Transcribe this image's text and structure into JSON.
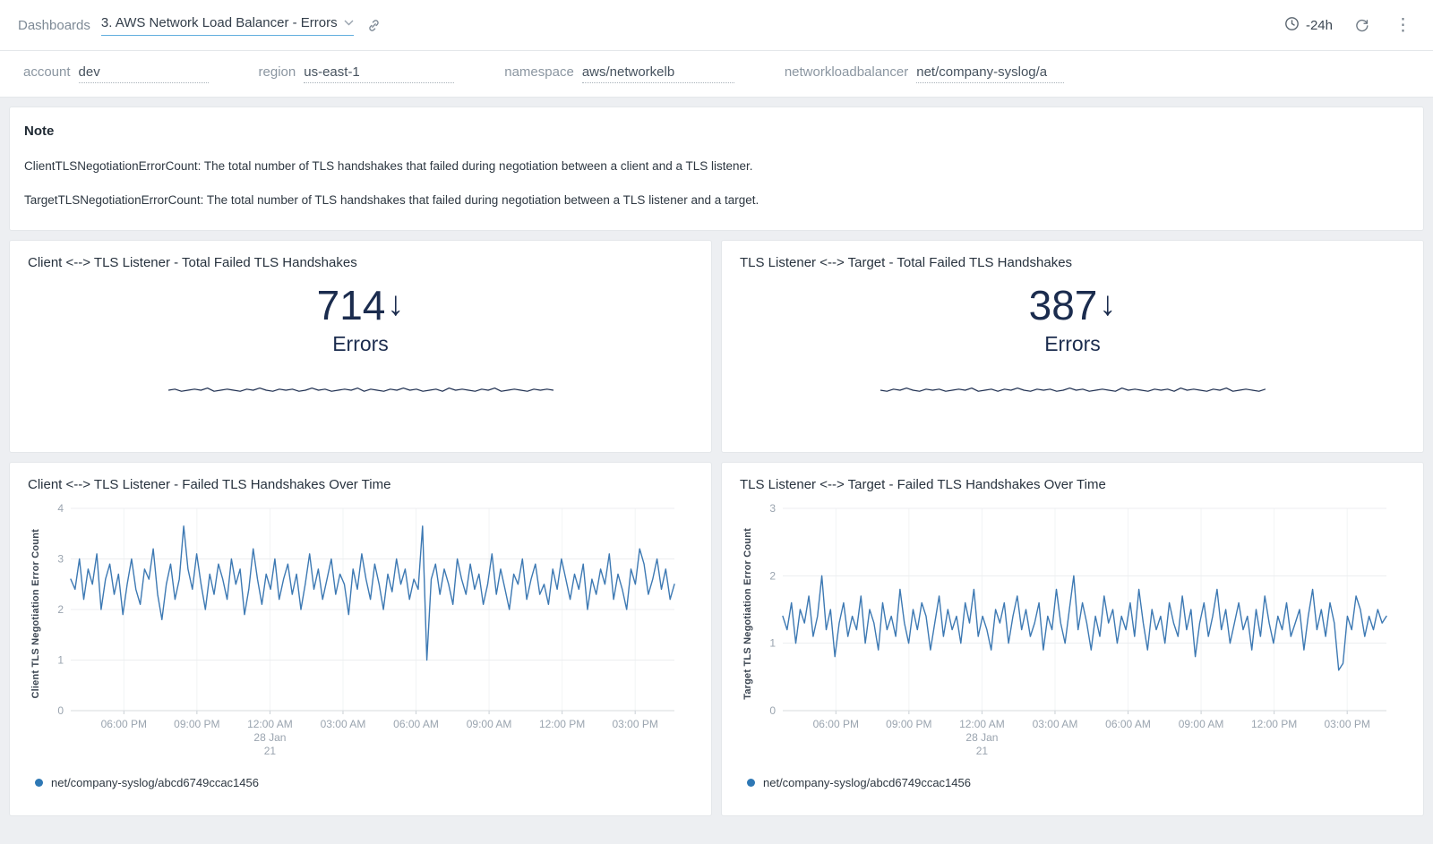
{
  "topbar": {
    "breadcrumb": "Dashboards",
    "title": "3. AWS Network Load Balancer - Errors",
    "time_range": "-24h"
  },
  "filters": [
    {
      "label": "account",
      "value": "dev"
    },
    {
      "label": "region",
      "value": "us-east-1"
    },
    {
      "label": "namespace",
      "value": "aws/networkelb"
    },
    {
      "label": "networkloadbalancer",
      "value": "net/company-syslog/a"
    }
  ],
  "note": {
    "title": "Note",
    "lines": [
      "ClientTLSNegotiationErrorCount: The total number of TLS handshakes that failed during negotiation between a client and a TLS listener.",
      "TargetTLSNegotiationErrorCount: The total number of TLS handshakes that failed during negotiation between a TLS listener and a target."
    ]
  },
  "colors": {
    "line_blue": "#3d79b3",
    "legend_dot": "#2e78b5",
    "number_navy": "#1b2c4e",
    "accent_underline": "#61aede"
  },
  "stats": [
    {
      "title": "Client <--> TLS Listener - Total Failed TLS Handshakes",
      "value": "714",
      "arrow": "↓",
      "unit": "Errors",
      "spark": [
        5,
        6,
        4,
        5,
        6,
        5,
        7,
        4,
        5,
        6,
        5,
        4,
        6,
        5,
        7,
        5,
        4,
        6,
        5,
        6,
        4,
        5,
        7,
        5,
        6,
        4,
        5,
        6,
        5,
        7,
        4,
        6,
        5,
        4,
        6,
        5,
        7,
        5,
        6,
        4,
        5,
        6,
        4,
        7,
        5,
        6,
        5,
        4,
        6,
        5,
        7,
        4,
        5,
        6,
        5,
        4,
        6,
        5,
        6,
        5
      ]
    },
    {
      "title": "TLS Listener <--> Target - Total Failed TLS Handshakes",
      "value": "387",
      "arrow": "↓",
      "unit": "Errors",
      "spark": [
        5,
        4,
        6,
        5,
        7,
        5,
        4,
        6,
        5,
        6,
        4,
        5,
        6,
        5,
        7,
        4,
        5,
        6,
        4,
        6,
        5,
        7,
        5,
        4,
        6,
        5,
        6,
        4,
        5,
        7,
        5,
        6,
        4,
        5,
        6,
        5,
        4,
        7,
        5,
        6,
        5,
        4,
        6,
        5,
        6,
        4,
        7,
        5,
        6,
        5,
        4,
        6,
        5,
        7,
        4,
        5,
        6,
        5,
        4,
        6
      ]
    }
  ],
  "chart_data": [
    {
      "type": "line",
      "title": "Client <--> TLS Listener - Failed TLS Handshakes Over Time",
      "ylabel": "Client TLS Negotiation Error Count",
      "ylim": [
        0,
        4
      ],
      "yticks": [
        0,
        1,
        2,
        3,
        4
      ],
      "xticks": [
        "06:00 PM",
        "09:00 PM",
        "12:00 AM",
        "03:00 AM",
        "06:00 AM",
        "09:00 AM",
        "12:00 PM",
        "03:00 PM"
      ],
      "date_tick_index": 2,
      "date_lines": [
        "28 Jan",
        "21"
      ],
      "grid": true,
      "legend_position": "bottom-left",
      "color": "#3d79b3",
      "series": [
        {
          "name": "net/company-syslog/abcd6749ccac1456",
          "values": [
            2.6,
            2.4,
            3.0,
            2.2,
            2.8,
            2.5,
            3.1,
            2.0,
            2.6,
            2.9,
            2.3,
            2.7,
            1.9,
            2.5,
            3.0,
            2.4,
            2.1,
            2.8,
            2.6,
            3.2,
            2.3,
            1.8,
            2.5,
            2.9,
            2.2,
            2.6,
            3.65,
            2.8,
            2.4,
            3.1,
            2.5,
            2.0,
            2.7,
            2.3,
            2.9,
            2.6,
            2.2,
            3.0,
            2.5,
            2.8,
            1.9,
            2.4,
            3.2,
            2.6,
            2.1,
            2.7,
            2.4,
            3.0,
            2.2,
            2.6,
            2.9,
            2.3,
            2.7,
            2.0,
            2.5,
            3.1,
            2.4,
            2.8,
            2.2,
            2.6,
            3.0,
            2.3,
            2.7,
            2.5,
            1.9,
            2.8,
            2.4,
            3.1,
            2.6,
            2.2,
            2.9,
            2.5,
            2.0,
            2.7,
            2.35,
            3.0,
            2.5,
            2.8,
            2.2,
            2.6,
            2.4,
            3.65,
            1.0,
            2.6,
            2.9,
            2.3,
            2.8,
            2.5,
            2.1,
            3.0,
            2.6,
            2.3,
            2.9,
            2.4,
            2.7,
            2.1,
            2.5,
            3.1,
            2.3,
            2.8,
            2.4,
            2.0,
            2.7,
            2.5,
            3.0,
            2.2,
            2.6,
            2.9,
            2.3,
            2.5,
            2.1,
            2.8,
            2.4,
            3.0,
            2.6,
            2.2,
            2.7,
            2.4,
            2.9,
            2.0,
            2.6,
            2.3,
            2.8,
            2.5,
            3.1,
            2.2,
            2.7,
            2.4,
            2.0,
            2.8,
            2.5,
            3.2,
            2.9,
            2.3,
            2.6,
            3.0,
            2.4,
            2.8,
            2.2,
            2.5
          ]
        }
      ]
    },
    {
      "type": "line",
      "title": "TLS Listener <--> Target - Failed TLS Handshakes Over Time",
      "ylabel": "Target TLS Negotiation Error Count",
      "ylim": [
        0,
        3
      ],
      "yticks": [
        0,
        1,
        2,
        3
      ],
      "xticks": [
        "06:00 PM",
        "09:00 PM",
        "12:00 AM",
        "03:00 AM",
        "06:00 AM",
        "09:00 AM",
        "12:00 PM",
        "03:00 PM"
      ],
      "date_tick_index": 2,
      "date_lines": [
        "28 Jan",
        "21"
      ],
      "grid": true,
      "legend_position": "bottom-left",
      "color": "#3d79b3",
      "series": [
        {
          "name": "net/company-syslog/abcd6749ccac1456",
          "values": [
            1.4,
            1.2,
            1.6,
            1.0,
            1.5,
            1.3,
            1.7,
            1.1,
            1.4,
            2.0,
            1.2,
            1.5,
            0.8,
            1.3,
            1.6,
            1.1,
            1.4,
            1.2,
            1.7,
            1.0,
            1.5,
            1.3,
            0.9,
            1.6,
            1.2,
            1.4,
            1.1,
            1.8,
            1.3,
            1.0,
            1.5,
            1.2,
            1.6,
            1.4,
            0.9,
            1.3,
            1.7,
            1.1,
            1.5,
            1.2,
            1.4,
            1.0,
            1.6,
            1.3,
            1.8,
            1.1,
            1.4,
            1.2,
            0.9,
            1.5,
            1.3,
            1.6,
            1.0,
            1.4,
            1.7,
            1.2,
            1.5,
            1.1,
            1.3,
            1.6,
            0.9,
            1.4,
            1.2,
            1.8,
            1.3,
            1.0,
            1.5,
            2.0,
            1.2,
            1.6,
            1.3,
            0.9,
            1.4,
            1.1,
            1.7,
            1.3,
            1.5,
            1.0,
            1.4,
            1.2,
            1.6,
            1.1,
            1.8,
            1.3,
            0.9,
            1.5,
            1.2,
            1.4,
            1.0,
            1.6,
            1.3,
            1.1,
            1.7,
            1.2,
            1.5,
            0.8,
            1.3,
            1.6,
            1.1,
            1.4,
            1.8,
            1.2,
            1.5,
            1.0,
            1.3,
            1.6,
            1.2,
            1.4,
            0.9,
            1.5,
            1.1,
            1.7,
            1.3,
            1.0,
            1.4,
            1.2,
            1.6,
            1.1,
            1.3,
            1.5,
            0.9,
            1.4,
            1.8,
            1.2,
            1.5,
            1.1,
            1.6,
            1.3,
            0.6,
            0.7,
            1.4,
            1.2,
            1.7,
            1.5,
            1.1,
            1.4,
            1.2,
            1.5,
            1.3,
            1.4
          ]
        }
      ]
    }
  ]
}
